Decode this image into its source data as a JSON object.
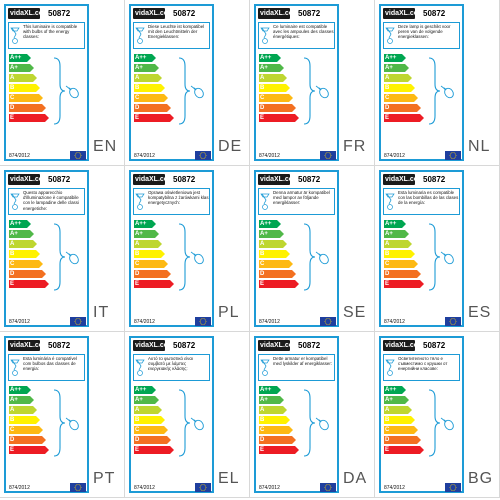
{
  "product_code": "50872",
  "logo_text": "vidaXL.com",
  "regulation": "874/2012",
  "energy_classes": [
    "A++",
    "A+",
    "A",
    "B",
    "C",
    "D",
    "E"
  ],
  "class_colors": [
    "#00a651",
    "#50b848",
    "#bed630",
    "#fff200",
    "#fdb913",
    "#f37021",
    "#ed1c24"
  ],
  "labels": [
    {
      "lang": "EN",
      "text": "This luminaire is compatible with bulbs of the energy classes:"
    },
    {
      "lang": "DE",
      "text": "Diese Leuchte ist kompatibel mit den Leuchtmitteln der Energieklassen:"
    },
    {
      "lang": "FR",
      "text": "Ce luminaire est compatible avec les ampoules des classes énergétiques:"
    },
    {
      "lang": "NL",
      "text": "Deze lamp is geschikt voor peren van de volgende energieklassen:"
    },
    {
      "lang": "IT",
      "text": "Questo apparecchio d'illuminazione è compatibile con le lampadine delle classi energetiche:"
    },
    {
      "lang": "PL",
      "text": "Oprawa oświetleniowa jest kompatybilna z żarówkami klas energetycznych:"
    },
    {
      "lang": "SE",
      "text": "Denna armatur är kompatibel med lampor av följande energiklasser:"
    },
    {
      "lang": "ES",
      "text": "Esta luminaria es compatible con las bombillas de las clases de la energía:"
    },
    {
      "lang": "PT",
      "text": "Esta luminária é compatível com bulbos das classes de energia:"
    },
    {
      "lang": "EL",
      "text": "Αυτό το φωτιστικό είναι συμβατό με λάμπες ενεργειακής κλάσης:"
    },
    {
      "lang": "DA",
      "text": "Dette armatur er kompatibel med lyskilder af energiklasser:"
    },
    {
      "lang": "BG",
      "text": "Осветителното тяло е съвместимо с крушки от енергийни класове:"
    }
  ]
}
